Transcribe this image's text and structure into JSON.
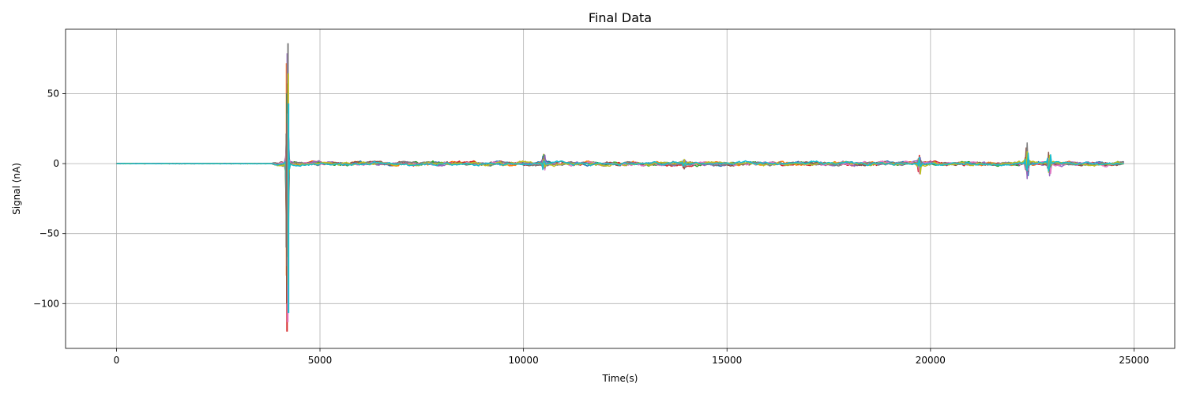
{
  "chart_data": {
    "type": "line",
    "title": "Final Data",
    "xlabel": "Time(s)",
    "ylabel": "Signal (nA)",
    "xlim": [
      -1250,
      26000
    ],
    "ylim": [
      -132,
      96
    ],
    "xticks": [
      0,
      5000,
      10000,
      15000,
      20000,
      25000
    ],
    "yticks": [
      -100,
      -50,
      0,
      50
    ],
    "grid": true,
    "legend": "none",
    "x_range": [
      0,
      24750
    ],
    "series_colors": [
      "#1f77b4",
      "#ff7f0e",
      "#2ca02c",
      "#d62728",
      "#9467bd",
      "#8c564b",
      "#e377c2",
      "#7f7f7f",
      "#bcbd22",
      "#17becf"
    ],
    "noise_start": 3850,
    "baseline_noise": 0.8,
    "bursts": [
      {
        "t": 4200,
        "max": 86,
        "min": -120
      },
      {
        "t": 10500,
        "max": 9,
        "min": -7
      },
      {
        "t": 13950,
        "max": 4,
        "min": -4
      },
      {
        "t": 19730,
        "max": 7,
        "min": -10
      },
      {
        "t": 22370,
        "max": 15,
        "min": -15
      },
      {
        "t": 22920,
        "max": 11,
        "min": -13
      }
    ]
  }
}
